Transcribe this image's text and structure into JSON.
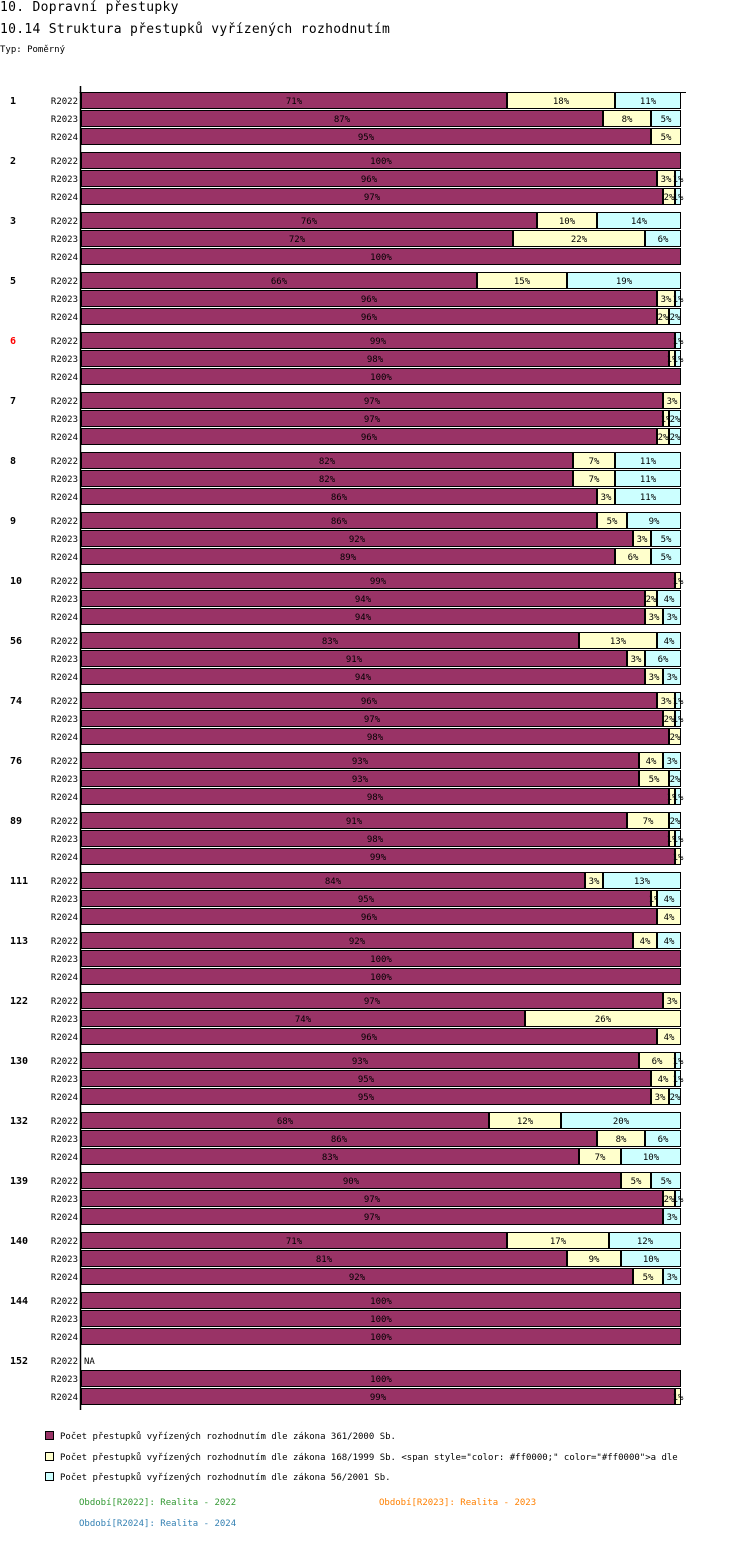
{
  "header": {
    "title": "10. Dopravní přestupky",
    "subtitle": "10.14 Struktura přestupků vyřízených rozhodnutím",
    "type_label": "Typ: Poměrný"
  },
  "colors": {
    "s1": "#993366",
    "s2": "#ffffcc",
    "s3": "#ccffff",
    "highlight_label": "#ff0000",
    "p2022": "#339933",
    "p2023": "#ff8000",
    "p2024": "#3380b3"
  },
  "chart_data": {
    "type": "bar",
    "orientation": "horizontal-stacked-100",
    "title": "10.14 Struktura přestupků vyřízených rozhodnutím",
    "xlabel": "",
    "ylabel": "",
    "xlim": [
      0,
      100
    ],
    "grid": false,
    "legend_position": "bottom",
    "series": [
      {
        "name": "Počet přestupků vyřízených rozhodnutím dle zákona 361/2000 Sb.",
        "color_key": "s1"
      },
      {
        "name": "Počet přestupků vyřízených rozhodnutím dle zákona 168/1999 Sb. <span style=\"color: #ff0000;\" color=\"#ff0000\">a dle",
        "color_key": "s2"
      },
      {
        "name": "Počet přestupků vyřízených rozhodnutím dle zákona 56/2001 Sb.",
        "color_key": "s3"
      }
    ],
    "groups": [
      {
        "label": "1",
        "rows": [
          {
            "period": "R2022",
            "values": [
              71,
              18,
              11
            ]
          },
          {
            "period": "R2023",
            "values": [
              87,
              8,
              5
            ]
          },
          {
            "period": "R2024",
            "values": [
              95,
              5,
              0
            ]
          }
        ]
      },
      {
        "label": "2",
        "rows": [
          {
            "period": "R2022",
            "values": [
              100,
              0,
              0
            ]
          },
          {
            "period": "R2023",
            "values": [
              96,
              3,
              1
            ]
          },
          {
            "period": "R2024",
            "values": [
              97,
              2,
              1
            ]
          }
        ]
      },
      {
        "label": "3",
        "rows": [
          {
            "period": "R2022",
            "values": [
              76,
              10,
              14
            ]
          },
          {
            "period": "R2023",
            "values": [
              72,
              22,
              6
            ]
          },
          {
            "period": "R2024",
            "values": [
              100,
              0,
              0
            ]
          }
        ]
      },
      {
        "label": "5",
        "rows": [
          {
            "period": "R2022",
            "values": [
              66,
              15,
              19
            ]
          },
          {
            "period": "R2023",
            "values": [
              96,
              3,
              1
            ]
          },
          {
            "period": "R2024",
            "values": [
              96,
              2,
              2
            ]
          }
        ]
      },
      {
        "label": "6",
        "highlight": true,
        "rows": [
          {
            "period": "R2022",
            "values": [
              99,
              0,
              1
            ]
          },
          {
            "period": "R2023",
            "values": [
              98,
              1,
              1
            ]
          },
          {
            "period": "R2024",
            "values": [
              100,
              0,
              0
            ]
          }
        ]
      },
      {
        "label": "7",
        "rows": [
          {
            "period": "R2022",
            "values": [
              97,
              3,
              0
            ]
          },
          {
            "period": "R2023",
            "values": [
              97,
              1,
              2
            ]
          },
          {
            "period": "R2024",
            "values": [
              96,
              2,
              2
            ]
          }
        ]
      },
      {
        "label": "8",
        "rows": [
          {
            "period": "R2022",
            "values": [
              82,
              7,
              11
            ]
          },
          {
            "period": "R2023",
            "values": [
              82,
              7,
              11
            ]
          },
          {
            "period": "R2024",
            "values": [
              86,
              3,
              11
            ]
          }
        ]
      },
      {
        "label": "9",
        "rows": [
          {
            "period": "R2022",
            "values": [
              86,
              5,
              9
            ]
          },
          {
            "period": "R2023",
            "values": [
              92,
              3,
              5
            ]
          },
          {
            "period": "R2024",
            "values": [
              89,
              6,
              5
            ]
          }
        ]
      },
      {
        "label": "10",
        "rows": [
          {
            "period": "R2022",
            "values": [
              99,
              1,
              0
            ]
          },
          {
            "period": "R2023",
            "values": [
              94,
              2,
              4
            ]
          },
          {
            "period": "R2024",
            "values": [
              94,
              3,
              3
            ]
          }
        ]
      },
      {
        "label": "56",
        "rows": [
          {
            "period": "R2022",
            "values": [
              83,
              13,
              4
            ]
          },
          {
            "period": "R2023",
            "values": [
              91,
              3,
              6
            ]
          },
          {
            "period": "R2024",
            "values": [
              94,
              3,
              3
            ]
          }
        ]
      },
      {
        "label": "74",
        "rows": [
          {
            "period": "R2022",
            "values": [
              96,
              3,
              1
            ]
          },
          {
            "period": "R2023",
            "values": [
              97,
              2,
              1
            ]
          },
          {
            "period": "R2024",
            "values": [
              98,
              2,
              0
            ]
          }
        ]
      },
      {
        "label": "76",
        "rows": [
          {
            "period": "R2022",
            "values": [
              93,
              4,
              3
            ]
          },
          {
            "period": "R2023",
            "values": [
              93,
              5,
              2
            ]
          },
          {
            "period": "R2024",
            "values": [
              98,
              1,
              1
            ]
          }
        ]
      },
      {
        "label": "89",
        "rows": [
          {
            "period": "R2022",
            "values": [
              91,
              7,
              2
            ]
          },
          {
            "period": "R2023",
            "values": [
              98,
              1,
              1
            ]
          },
          {
            "period": "R2024",
            "values": [
              99,
              1,
              0
            ]
          }
        ]
      },
      {
        "label": "111",
        "rows": [
          {
            "period": "R2022",
            "values": [
              84,
              3,
              13
            ]
          },
          {
            "period": "R2023",
            "values": [
              95,
              1,
              4
            ]
          },
          {
            "period": "R2024",
            "values": [
              96,
              4,
              0
            ]
          }
        ]
      },
      {
        "label": "113",
        "rows": [
          {
            "period": "R2022",
            "values": [
              92,
              4,
              4
            ]
          },
          {
            "period": "R2023",
            "values": [
              100,
              0,
              0
            ]
          },
          {
            "period": "R2024",
            "values": [
              100,
              0,
              0
            ]
          }
        ]
      },
      {
        "label": "122",
        "rows": [
          {
            "period": "R2022",
            "values": [
              97,
              3,
              0
            ]
          },
          {
            "period": "R2023",
            "values": [
              74,
              26,
              0
            ]
          },
          {
            "period": "R2024",
            "values": [
              96,
              4,
              0
            ]
          }
        ]
      },
      {
        "label": "130",
        "rows": [
          {
            "period": "R2022",
            "values": [
              93,
              6,
              1
            ]
          },
          {
            "period": "R2023",
            "values": [
              95,
              4,
              1
            ]
          },
          {
            "period": "R2024",
            "values": [
              95,
              3,
              2
            ]
          }
        ]
      },
      {
        "label": "132",
        "rows": [
          {
            "period": "R2022",
            "values": [
              68,
              12,
              20
            ]
          },
          {
            "period": "R2023",
            "values": [
              86,
              8,
              6
            ]
          },
          {
            "period": "R2024",
            "values": [
              83,
              7,
              10
            ]
          }
        ]
      },
      {
        "label": "139",
        "rows": [
          {
            "period": "R2022",
            "values": [
              90,
              5,
              5
            ]
          },
          {
            "period": "R2023",
            "values": [
              97,
              2,
              1
            ]
          },
          {
            "period": "R2024",
            "values": [
              97,
              0,
              3
            ]
          }
        ]
      },
      {
        "label": "140",
        "rows": [
          {
            "period": "R2022",
            "values": [
              71,
              17,
              12
            ]
          },
          {
            "period": "R2023",
            "values": [
              81,
              9,
              10
            ]
          },
          {
            "period": "R2024",
            "values": [
              92,
              5,
              3
            ]
          }
        ]
      },
      {
        "label": "144",
        "rows": [
          {
            "period": "R2022",
            "values": [
              100,
              0,
              0
            ]
          },
          {
            "period": "R2023",
            "values": [
              100,
              0,
              0
            ]
          },
          {
            "period": "R2024",
            "values": [
              100,
              0,
              0
            ]
          }
        ]
      },
      {
        "label": "152",
        "rows": [
          {
            "period": "R2022",
            "values": null,
            "na_text": "NA"
          },
          {
            "period": "R2023",
            "values": [
              100,
              0,
              0
            ]
          },
          {
            "period": "R2024",
            "values": [
              99,
              1,
              0
            ]
          }
        ]
      }
    ]
  },
  "legend": {
    "items": [
      {
        "text": "Počet přestupků vyřízených rozhodnutím dle zákona 361/2000 Sb."
      },
      {
        "text": "Počet přestupků vyřízených rozhodnutím dle zákona 168/1999 Sb. <span style=\"color: #ff0000;\" color=\"#ff0000\">a dle"
      },
      {
        "text": "Počet přestupků vyřízených rozhodnutím dle zákona 56/2001 Sb."
      }
    ],
    "periods": [
      {
        "text": "Období[R2022]: Realita - 2022"
      },
      {
        "text": "Období[R2023]: Realita - 2023"
      },
      {
        "text": "Období[R2024]: Realita - 2024"
      }
    ]
  }
}
